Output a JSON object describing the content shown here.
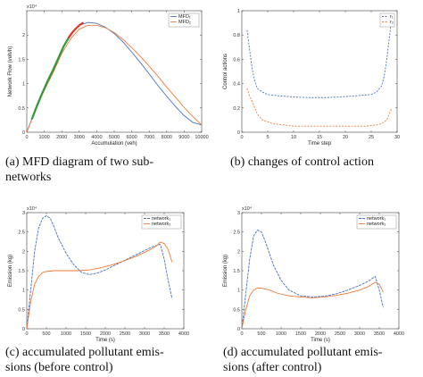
{
  "captions": [
    [
      "(a) MFD diagram of two sub-",
      "networks"
    ],
    [
      "(b) changes of control action"
    ],
    [
      "(c) accumulated pollutant emis-",
      "sions (before control)"
    ],
    [
      "(d) accumulated pollutant emis-",
      "sions (after control)"
    ]
  ],
  "colors": {
    "blue": "#4a6fc4",
    "orange": "#f07a3a",
    "red": "#e0342a",
    "green": "#2f9a3a",
    "axis": "#444444"
  },
  "chart_data": [
    {
      "type": "line",
      "xlabel": "Accumulation (veh)",
      "ylabel": "Network Flow (veh/h)",
      "exponent": "x10⁴",
      "xlim": [
        0,
        10000
      ],
      "ylim": [
        0,
        2.5
      ],
      "xticks": [
        0,
        1000,
        2000,
        3000,
        4000,
        5000,
        6000,
        7000,
        8000,
        9000,
        10000
      ],
      "xtick_labels": [
        "0",
        "1000",
        "2000",
        "3000",
        "4000",
        "5000",
        "6000",
        "7000",
        "8000",
        "9000",
        "10000"
      ],
      "yticks": [
        0,
        0.5,
        1,
        1.5,
        2
      ],
      "ytick_labels": [
        "0",
        "0.5",
        "1",
        "1.5",
        "2"
      ],
      "legend": [
        "MFD₁",
        "MFD₂"
      ],
      "legend_position": "top-right",
      "series": [
        {
          "name": "MFD₁",
          "color": "#4a6fc4",
          "x": [
            0,
            500,
            1000,
            1500,
            2000,
            2500,
            3000,
            3500,
            4000,
            4500,
            5000,
            5500,
            6000,
            6500,
            7000,
            7500,
            8000,
            8500,
            9000,
            9500,
            10000
          ],
          "y": [
            0.0,
            0.47,
            0.9,
            1.28,
            1.7,
            2.0,
            2.2,
            2.26,
            2.24,
            2.16,
            2.03,
            1.86,
            1.65,
            1.43,
            1.2,
            0.96,
            0.74,
            0.53,
            0.34,
            0.2,
            0.15
          ]
        },
        {
          "name": "MFD₂",
          "color": "#f07a3a",
          "x": [
            0,
            500,
            1000,
            1500,
            2000,
            2500,
            3000,
            3500,
            4000,
            4500,
            5000,
            5500,
            6000,
            6500,
            7000,
            7500,
            8000,
            8500,
            9000,
            9500,
            10000
          ],
          "y": [
            0.0,
            0.45,
            0.86,
            1.22,
            1.62,
            1.92,
            2.12,
            2.2,
            2.2,
            2.15,
            2.05,
            1.91,
            1.74,
            1.56,
            1.36,
            1.15,
            0.93,
            0.72,
            0.51,
            0.32,
            0.15
          ]
        }
      ],
      "highlights": [
        {
          "color": "#2f9a3a",
          "x": [
            300,
            600,
            900,
            1200,
            1500,
            1800,
            2100,
            2400
          ],
          "y": [
            0.28,
            0.56,
            0.82,
            1.06,
            1.28,
            1.52,
            1.76,
            1.95
          ]
        },
        {
          "color": "#e0342a",
          "x": [
            2400,
            2600,
            2800,
            3000,
            3200
          ],
          "y": [
            1.95,
            2.05,
            2.13,
            2.2,
            2.25
          ]
        }
      ]
    },
    {
      "type": "line",
      "xlabel": "Time step",
      "ylabel": "Control actions",
      "exponent": "",
      "xlim": [
        0,
        30
      ],
      "ylim": [
        0,
        1
      ],
      "xticks": [
        0,
        5,
        10,
        15,
        20,
        25,
        30
      ],
      "xtick_labels": [
        "0",
        "5",
        "10",
        "15",
        "20",
        "25",
        "30"
      ],
      "yticks": [
        0,
        0.2,
        0.4,
        0.6,
        0.8,
        1
      ],
      "ytick_labels": [
        "0",
        "0.2",
        "0.4",
        "0.6",
        "0.8",
        "1"
      ],
      "legend": [
        "r₁",
        "r₂"
      ],
      "legend_position": "top-right",
      "series": [
        {
          "name": "r₁",
          "color": "#4a6fc4",
          "dash": "2,1.5",
          "x": [
            1,
            1.5,
            2,
            2.5,
            3,
            4,
            5,
            7,
            10,
            13,
            16,
            19,
            22,
            25,
            26,
            27,
            27.5,
            28,
            28.5,
            29
          ],
          "y": [
            0.84,
            0.68,
            0.52,
            0.42,
            0.36,
            0.33,
            0.31,
            0.3,
            0.29,
            0.285,
            0.285,
            0.29,
            0.3,
            0.31,
            0.33,
            0.38,
            0.46,
            0.6,
            0.78,
            0.96
          ]
        },
        {
          "name": "r₂",
          "color": "#f07a3a",
          "dash": "2,1.5",
          "x": [
            1,
            1.5,
            2,
            2.5,
            3,
            4,
            6,
            8,
            10,
            14,
            18,
            22,
            24,
            26,
            27,
            28,
            28.5,
            29
          ],
          "y": [
            0.36,
            0.3,
            0.25,
            0.2,
            0.15,
            0.1,
            0.07,
            0.06,
            0.05,
            0.05,
            0.05,
            0.05,
            0.05,
            0.06,
            0.07,
            0.1,
            0.15,
            0.2
          ]
        }
      ]
    },
    {
      "type": "line",
      "xlabel": "Time (s)",
      "ylabel": "Emission (kg)",
      "exponent": "x10⁴",
      "xlim": [
        0,
        4000
      ],
      "ylim": [
        0,
        3
      ],
      "xticks": [
        0,
        500,
        1000,
        1500,
        2000,
        2500,
        3000,
        3500,
        4000
      ],
      "xtick_labels": [
        "0",
        "500",
        "1000",
        "1500",
        "2000",
        "2500",
        "3000",
        "3500",
        "4000"
      ],
      "yticks": [
        0,
        0.5,
        1,
        1.5,
        2,
        2.5,
        3
      ],
      "ytick_labels": [
        "0",
        "0.5",
        "1",
        "1.5",
        "2",
        "2.5",
        "3"
      ],
      "legend": [
        "network₁",
        "network₂"
      ],
      "legend_position": "top-right",
      "series": [
        {
          "name": "network₁",
          "color": "#4a6fc4",
          "dash": "3,1",
          "x": [
            0,
            100,
            200,
            300,
            400,
            500,
            600,
            700,
            800,
            1000,
            1200,
            1400,
            1600,
            1800,
            2000,
            2200,
            2400,
            2600,
            2800,
            3000,
            3200,
            3400,
            3500,
            3600,
            3700
          ],
          "y": [
            0.0,
            1.0,
            2.0,
            2.6,
            2.85,
            2.92,
            2.85,
            2.62,
            2.35,
            1.95,
            1.65,
            1.45,
            1.4,
            1.44,
            1.52,
            1.62,
            1.72,
            1.82,
            1.92,
            2.02,
            2.12,
            2.18,
            1.8,
            1.25,
            0.78
          ]
        },
        {
          "name": "network₂",
          "color": "#f07a3a",
          "x": [
            0,
            100,
            200,
            300,
            400,
            500,
            700,
            1000,
            1300,
            1600,
            1900,
            2200,
            2500,
            2800,
            3100,
            3300,
            3400,
            3500,
            3600,
            3700
          ],
          "y": [
            0.0,
            0.7,
            1.15,
            1.35,
            1.45,
            1.48,
            1.5,
            1.5,
            1.5,
            1.52,
            1.58,
            1.66,
            1.76,
            1.88,
            2.02,
            2.14,
            2.24,
            2.2,
            2.05,
            1.72
          ]
        }
      ]
    },
    {
      "type": "line",
      "xlabel": "Time (s)",
      "ylabel": "Emission (kg)",
      "exponent": "x10⁴",
      "xlim": [
        0,
        4000
      ],
      "ylim": [
        0,
        3
      ],
      "xticks": [
        0,
        500,
        1000,
        1500,
        2000,
        2500,
        3000,
        3500,
        4000
      ],
      "xtick_labels": [
        "0",
        "500",
        "1000",
        "1500",
        "2000",
        "2500",
        "3000",
        "3500",
        "4000"
      ],
      "yticks": [
        0,
        0.5,
        1,
        1.5,
        2,
        2.5,
        3
      ],
      "ytick_labels": [
        "0",
        "0.5",
        "1",
        "1.5",
        "2",
        "2.5",
        "3"
      ],
      "legend": [
        "network₁",
        "network₂"
      ],
      "legend_position": "top-right",
      "series": [
        {
          "name": "network₁",
          "color": "#4a6fc4",
          "dash": "3,1",
          "x": [
            0,
            100,
            200,
            300,
            400,
            500,
            600,
            700,
            800,
            1000,
            1200,
            1500,
            1800,
            2100,
            2400,
            2700,
            3000,
            3200,
            3400,
            3500,
            3600
          ],
          "y": [
            0.0,
            0.9,
            1.8,
            2.4,
            2.55,
            2.5,
            2.25,
            1.95,
            1.65,
            1.25,
            1.0,
            0.85,
            0.82,
            0.84,
            0.9,
            1.0,
            1.12,
            1.22,
            1.35,
            1.0,
            0.55
          ]
        },
        {
          "name": "network₂",
          "color": "#f07a3a",
          "x": [
            0,
            100,
            200,
            300,
            400,
            500,
            700,
            900,
            1200,
            1500,
            1800,
            2100,
            2400,
            2700,
            3000,
            3200,
            3400,
            3500,
            3600
          ],
          "y": [
            0.0,
            0.5,
            0.85,
            1.0,
            1.05,
            1.05,
            1.0,
            0.92,
            0.85,
            0.82,
            0.8,
            0.82,
            0.86,
            0.92,
            1.0,
            1.08,
            1.2,
            1.15,
            0.95
          ]
        }
      ]
    }
  ]
}
